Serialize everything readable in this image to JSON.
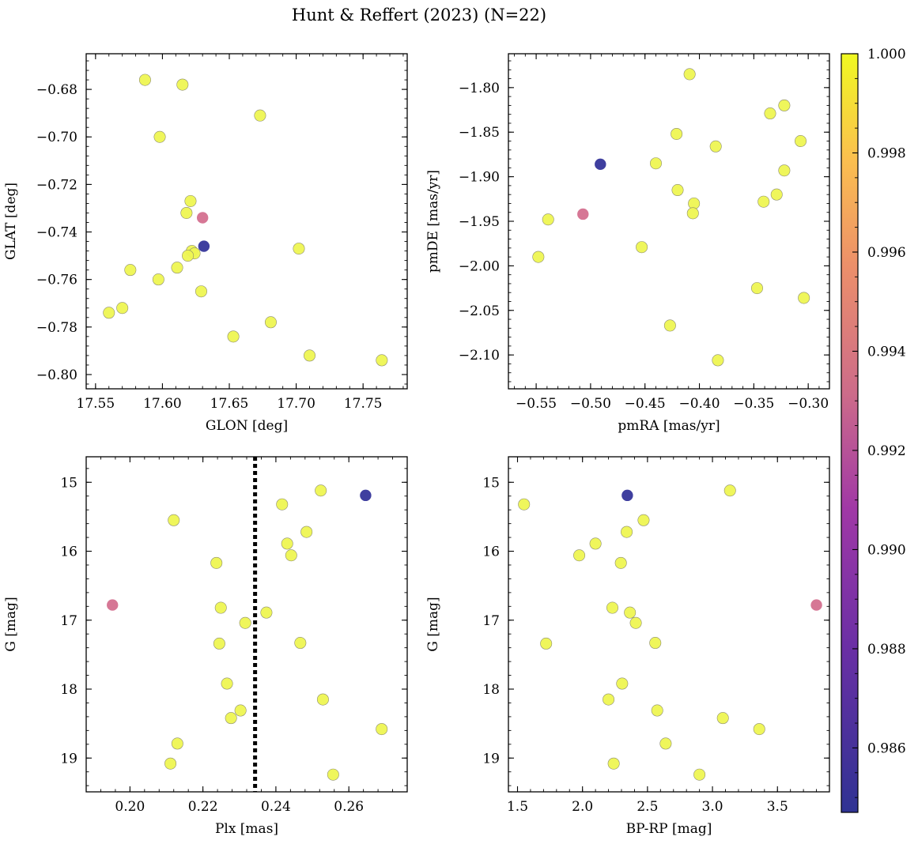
{
  "figure": {
    "title": "Hunt & Reffert (2023) (N=22)"
  },
  "colors": {
    "cmap_low": "#2f3393",
    "cmap_mid": "#cc6b8a",
    "cmap_high": "#f0f921",
    "point_high": "#eef552",
    "point_mid": "#d4708f",
    "point_low": "#35359a",
    "point_edge": "#8c8c6e"
  },
  "colorbar": {
    "range": [
      0.9847,
      1.0
    ],
    "ticks": [
      0.986,
      0.988,
      0.99,
      0.992,
      0.994,
      0.996,
      0.998,
      1.0
    ],
    "tick_labels": [
      "0.986",
      "0.988",
      "0.990",
      "0.992",
      "0.994",
      "0.996",
      "0.998",
      "1.000"
    ]
  },
  "chart_data": [
    {
      "type": "scatter",
      "title": "",
      "xlabel": "GLON [deg]",
      "ylabel": "GLAT [deg]",
      "xlim": [
        17.543,
        17.783
      ],
      "ylim": [
        -0.806,
        -0.665
      ],
      "xticks": [
        17.55,
        17.6,
        17.65,
        17.7,
        17.75
      ],
      "xtick_labels": [
        "17.55",
        "17.60",
        "17.65",
        "17.70",
        "17.75"
      ],
      "yticks": [
        -0.68,
        -0.7,
        -0.72,
        -0.74,
        -0.76,
        -0.78,
        -0.8
      ],
      "ytick_labels": [
        "−0.68",
        "−0.70",
        "−0.72",
        "−0.74",
        "−0.76",
        "−0.78",
        "−0.80"
      ],
      "points": [
        {
          "x": 17.587,
          "y": -0.676,
          "c": 1.0
        },
        {
          "x": 17.615,
          "y": -0.678,
          "c": 1.0
        },
        {
          "x": 17.673,
          "y": -0.691,
          "c": 1.0
        },
        {
          "x": 17.598,
          "y": -0.7,
          "c": 1.0
        },
        {
          "x": 17.621,
          "y": -0.727,
          "c": 1.0
        },
        {
          "x": 17.618,
          "y": -0.732,
          "c": 1.0
        },
        {
          "x": 17.63,
          "y": -0.734,
          "c": 0.9925
        },
        {
          "x": 17.631,
          "y": -0.746,
          "c": 0.9852
        },
        {
          "x": 17.702,
          "y": -0.747,
          "c": 1.0
        },
        {
          "x": 17.622,
          "y": -0.748,
          "c": 1.0
        },
        {
          "x": 17.624,
          "y": -0.749,
          "c": 1.0
        },
        {
          "x": 17.619,
          "y": -0.75,
          "c": 1.0
        },
        {
          "x": 17.611,
          "y": -0.755,
          "c": 1.0
        },
        {
          "x": 17.576,
          "y": -0.756,
          "c": 1.0
        },
        {
          "x": 17.597,
          "y": -0.76,
          "c": 1.0
        },
        {
          "x": 17.629,
          "y": -0.765,
          "c": 1.0
        },
        {
          "x": 17.57,
          "y": -0.772,
          "c": 1.0
        },
        {
          "x": 17.56,
          "y": -0.774,
          "c": 1.0
        },
        {
          "x": 17.681,
          "y": -0.778,
          "c": 1.0
        },
        {
          "x": 17.653,
          "y": -0.784,
          "c": 1.0
        },
        {
          "x": 17.71,
          "y": -0.792,
          "c": 1.0
        },
        {
          "x": 17.764,
          "y": -0.794,
          "c": 1.0
        }
      ]
    },
    {
      "type": "scatter",
      "title": "",
      "xlabel": "pmRA [mas/yr]",
      "ylabel": "pmDE [mas/yr]",
      "xlim": [
        -0.5755,
        -0.2805
      ],
      "ylim": [
        -2.138,
        -1.762
      ],
      "xticks": [
        -0.55,
        -0.5,
        -0.45,
        -0.4,
        -0.35,
        -0.3
      ],
      "xtick_labels": [
        "−0.55",
        "−0.50",
        "−0.45",
        "−0.40",
        "−0.35",
        "−0.30"
      ],
      "yticks": [
        -1.8,
        -1.85,
        -1.9,
        -1.95,
        -2.0,
        -2.05,
        -2.1
      ],
      "ytick_labels": [
        "−1.80",
        "−1.85",
        "−1.90",
        "−1.95",
        "−2.00",
        "−2.05",
        "−2.10"
      ],
      "points": [
        {
          "x": -0.409,
          "y": -1.785,
          "c": 1.0
        },
        {
          "x": -0.322,
          "y": -1.82,
          "c": 1.0
        },
        {
          "x": -0.335,
          "y": -1.829,
          "c": 1.0
        },
        {
          "x": -0.421,
          "y": -1.852,
          "c": 1.0
        },
        {
          "x": -0.307,
          "y": -1.86,
          "c": 1.0
        },
        {
          "x": -0.385,
          "y": -1.866,
          "c": 1.0
        },
        {
          "x": -0.491,
          "y": -1.886,
          "c": 0.9852
        },
        {
          "x": -0.44,
          "y": -1.885,
          "c": 1.0
        },
        {
          "x": -0.322,
          "y": -1.893,
          "c": 1.0
        },
        {
          "x": -0.42,
          "y": -1.915,
          "c": 1.0
        },
        {
          "x": -0.329,
          "y": -1.92,
          "c": 1.0
        },
        {
          "x": -0.341,
          "y": -1.928,
          "c": 1.0
        },
        {
          "x": -0.405,
          "y": -1.93,
          "c": 1.0
        },
        {
          "x": -0.406,
          "y": -1.941,
          "c": 1.0
        },
        {
          "x": -0.507,
          "y": -1.942,
          "c": 0.9925
        },
        {
          "x": -0.539,
          "y": -1.948,
          "c": 1.0
        },
        {
          "x": -0.453,
          "y": -1.979,
          "c": 1.0
        },
        {
          "x": -0.548,
          "y": -1.99,
          "c": 1.0
        },
        {
          "x": -0.347,
          "y": -2.025,
          "c": 1.0
        },
        {
          "x": -0.304,
          "y": -2.036,
          "c": 1.0
        },
        {
          "x": -0.427,
          "y": -2.067,
          "c": 1.0
        },
        {
          "x": -0.383,
          "y": -2.106,
          "c": 1.0
        }
      ]
    },
    {
      "type": "scatter",
      "title": "",
      "xlabel": "Plx [mas]",
      "ylabel": "G [mag]",
      "xlim": [
        0.188,
        0.276
      ],
      "ylim": [
        19.49,
        14.63
      ],
      "xticks": [
        0.2,
        0.22,
        0.24,
        0.26
      ],
      "xtick_labels": [
        "0.20",
        "0.22",
        "0.24",
        "0.26"
      ],
      "yticks": [
        15,
        16,
        17,
        18,
        19
      ],
      "ytick_labels": [
        "15",
        "16",
        "17",
        "18",
        "19"
      ],
      "vline": {
        "x": 0.2343,
        "style": "dotted"
      },
      "points": [
        {
          "x": 0.2523,
          "y": 15.12,
          "c": 1.0
        },
        {
          "x": 0.2646,
          "y": 15.19,
          "c": 0.9852
        },
        {
          "x": 0.2417,
          "y": 15.32,
          "c": 1.0
        },
        {
          "x": 0.212,
          "y": 15.55,
          "c": 1.0
        },
        {
          "x": 0.2484,
          "y": 15.72,
          "c": 1.0
        },
        {
          "x": 0.2431,
          "y": 15.89,
          "c": 1.0
        },
        {
          "x": 0.2442,
          "y": 16.06,
          "c": 1.0
        },
        {
          "x": 0.2237,
          "y": 16.17,
          "c": 1.0
        },
        {
          "x": 0.1952,
          "y": 16.78,
          "c": 0.9925
        },
        {
          "x": 0.2249,
          "y": 16.82,
          "c": 1.0
        },
        {
          "x": 0.2374,
          "y": 16.89,
          "c": 1.0
        },
        {
          "x": 0.2316,
          "y": 17.04,
          "c": 1.0
        },
        {
          "x": 0.2245,
          "y": 17.34,
          "c": 1.0
        },
        {
          "x": 0.2467,
          "y": 17.33,
          "c": 1.0
        },
        {
          "x": 0.2266,
          "y": 17.92,
          "c": 1.0
        },
        {
          "x": 0.2529,
          "y": 18.15,
          "c": 1.0
        },
        {
          "x": 0.2303,
          "y": 18.31,
          "c": 1.0
        },
        {
          "x": 0.2277,
          "y": 18.42,
          "c": 1.0
        },
        {
          "x": 0.269,
          "y": 18.58,
          "c": 1.0
        },
        {
          "x": 0.213,
          "y": 18.79,
          "c": 1.0
        },
        {
          "x": 0.2111,
          "y": 19.08,
          "c": 1.0
        },
        {
          "x": 0.2557,
          "y": 19.24,
          "c": 1.0
        }
      ]
    },
    {
      "type": "scatter",
      "title": "",
      "xlabel": "BP-RP [mag]",
      "ylabel": "G [mag]",
      "xlim": [
        1.43,
        3.9
      ],
      "ylim": [
        19.49,
        14.63
      ],
      "xticks": [
        1.5,
        2.0,
        2.5,
        3.0,
        3.5
      ],
      "xtick_labels": [
        "1.5",
        "2.0",
        "2.5",
        "3.0",
        "3.5"
      ],
      "yticks": [
        15,
        16,
        17,
        18,
        19
      ],
      "ytick_labels": [
        "15",
        "16",
        "17",
        "18",
        "19"
      ],
      "points": [
        {
          "x": 3.135,
          "y": 15.12,
          "c": 1.0
        },
        {
          "x": 2.345,
          "y": 15.19,
          "c": 0.9852
        },
        {
          "x": 1.55,
          "y": 15.32,
          "c": 1.0
        },
        {
          "x": 2.47,
          "y": 15.55,
          "c": 1.0
        },
        {
          "x": 2.34,
          "y": 15.72,
          "c": 1.0
        },
        {
          "x": 2.1,
          "y": 15.89,
          "c": 1.0
        },
        {
          "x": 1.975,
          "y": 16.06,
          "c": 1.0
        },
        {
          "x": 2.295,
          "y": 16.17,
          "c": 1.0
        },
        {
          "x": 3.8,
          "y": 16.78,
          "c": 0.9925
        },
        {
          "x": 2.23,
          "y": 16.82,
          "c": 1.0
        },
        {
          "x": 2.365,
          "y": 16.89,
          "c": 1.0
        },
        {
          "x": 2.41,
          "y": 17.04,
          "c": 1.0
        },
        {
          "x": 1.72,
          "y": 17.34,
          "c": 1.0
        },
        {
          "x": 2.56,
          "y": 17.33,
          "c": 1.0
        },
        {
          "x": 2.305,
          "y": 17.92,
          "c": 1.0
        },
        {
          "x": 2.2,
          "y": 18.15,
          "c": 1.0
        },
        {
          "x": 2.575,
          "y": 18.31,
          "c": 1.0
        },
        {
          "x": 3.08,
          "y": 18.42,
          "c": 1.0
        },
        {
          "x": 3.36,
          "y": 18.58,
          "c": 1.0
        },
        {
          "x": 2.64,
          "y": 18.79,
          "c": 1.0
        },
        {
          "x": 2.24,
          "y": 19.08,
          "c": 1.0
        },
        {
          "x": 2.9,
          "y": 19.24,
          "c": 1.0
        }
      ]
    }
  ]
}
